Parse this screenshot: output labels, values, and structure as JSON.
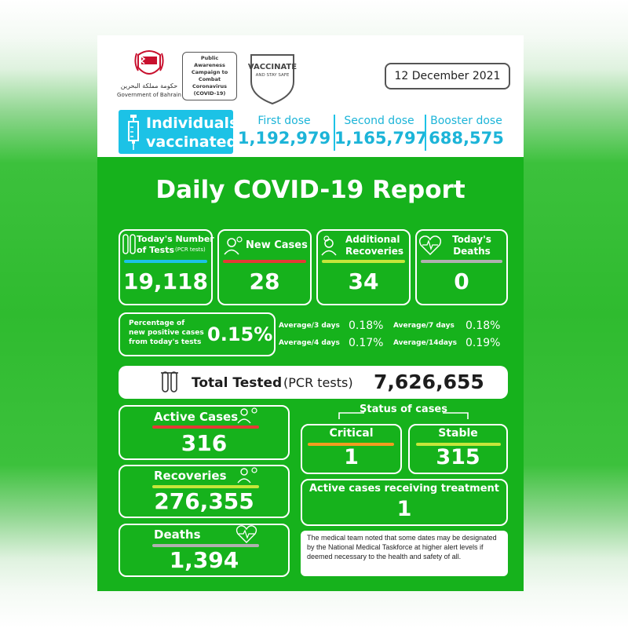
{
  "header": {
    "gov_arabic": "حكومة مملكة البحرين",
    "gov_name": "Government of Bahrain",
    "campaign": "Public Awareness Campaign to Combat Coronavirus (COVID-19)",
    "vaccinate_title": "VACCINATE",
    "vaccinate_sub": "AND STAY SAFE",
    "date": "12 December 2021"
  },
  "vaccination": {
    "label_line1": "Individuals",
    "label_line2": "vaccinated",
    "first_dose_label": "First dose",
    "first_dose_value": "1,192,979",
    "second_dose_label": "Second dose",
    "second_dose_value": "1,165,797",
    "booster_label": "Booster dose",
    "booster_value": "688,575"
  },
  "title": "Daily COVID-19 Report",
  "stats": {
    "tests_label1": "Today's Number",
    "tests_label2": "of Tests",
    "tests_label_sub": "(PCR tests)",
    "tests_value": "19,118",
    "new_cases_label": "New Cases",
    "new_cases_value": "28",
    "recoveries_label1": "Additional",
    "recoveries_label2": "Recoveries",
    "recoveries_value": "34",
    "deaths_label1": "Today's",
    "deaths_label2": "Deaths",
    "deaths_value": "0"
  },
  "positivity": {
    "label1": "Percentage of",
    "label2": "new positive cases",
    "label3": "from today's tests",
    "value": "0.15%",
    "avg3_label": "Average/3 days",
    "avg3_value": "0.18%",
    "avg7_label": "Average/7 days",
    "avg7_value": "0.18%",
    "avg4_label": "Average/4 days",
    "avg4_value": "0.17%",
    "avg14_label": "Average/14days",
    "avg14_value": "0.19%"
  },
  "total": {
    "label": "Total Tested",
    "label_sub": "(PCR tests)",
    "value": "7,626,655"
  },
  "cumulative": {
    "active_label": "Active Cases",
    "active_value": "316",
    "recoveries_label": "Recoveries",
    "recoveries_value": "276,355",
    "deaths_label": "Deaths",
    "deaths_value": "1,394"
  },
  "status": {
    "title": "Status of cases",
    "critical_label": "Critical",
    "critical_value": "1",
    "stable_label": "Stable",
    "stable_value": "315",
    "treatment_label": "Active cases receiving treatment",
    "treatment_value": "1",
    "note": "The medical team noted that some dates may be designated by the National Medical Taskforce at higher alert levels if deemed necessary to the health and safety of all."
  },
  "colors": {
    "green": "#16b21c",
    "cyan": "#1cc2e6",
    "red": "#e53935",
    "orange": "#f29c1f",
    "yellow_green": "#c6e63a",
    "gray": "#b0b0b0"
  }
}
